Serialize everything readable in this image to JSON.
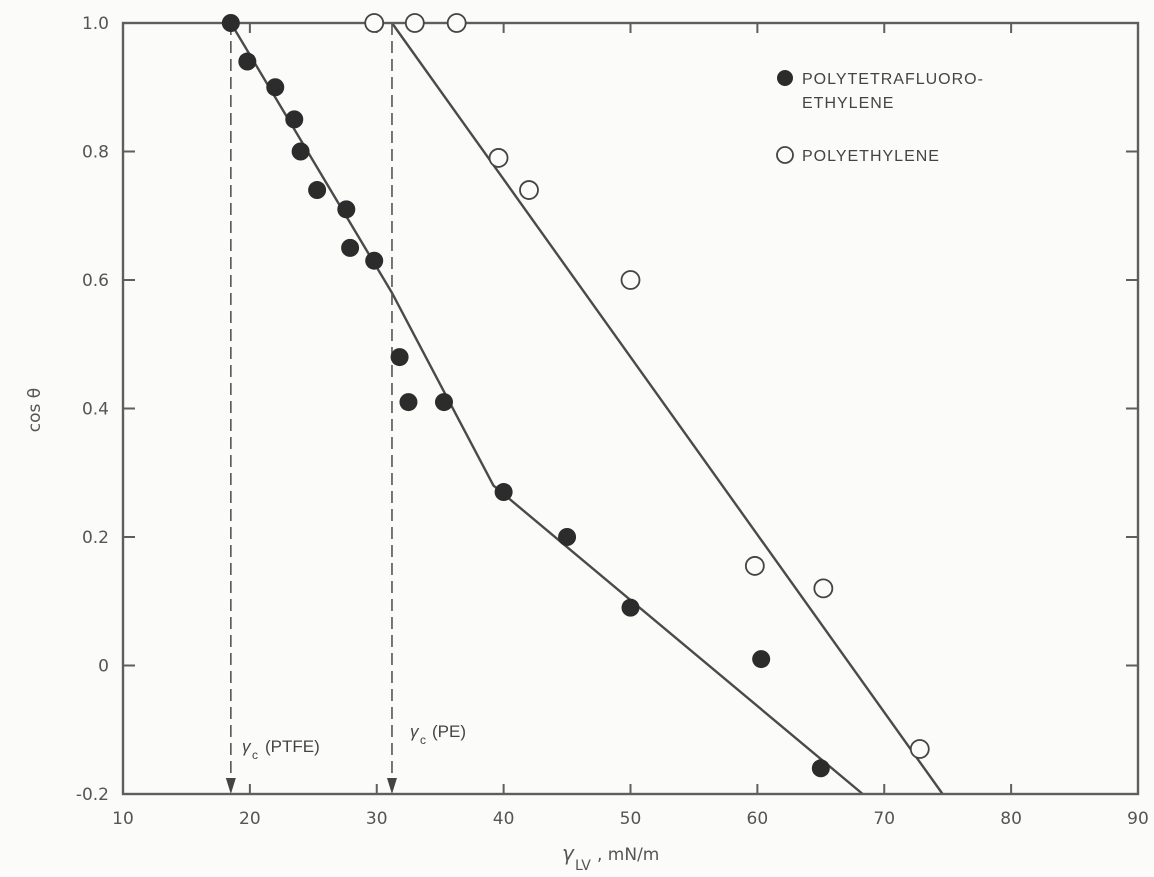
{
  "chart_data": {
    "type": "scatter",
    "title": "",
    "xlabel": "γ",
    "xlabel_sub": "LV",
    "xlabel_unit": ", mN/m",
    "ylabel": "cos θ",
    "xlim": [
      10,
      90
    ],
    "ylim": [
      -0.2,
      1.0
    ],
    "x_ticks": [
      "10",
      "20",
      "30",
      "40",
      "50",
      "60",
      "70",
      "80",
      "90"
    ],
    "y_ticks": [
      "-0.2",
      "0",
      "0.2",
      "0.4",
      "0.6",
      "0.8",
      "1.0"
    ],
    "y_tick_values": [
      -0.2,
      0,
      0.2,
      0.4,
      0.6,
      0.8,
      1.0
    ],
    "x_tick_values": [
      10,
      20,
      30,
      40,
      50,
      60,
      70,
      80,
      90
    ],
    "grid": false,
    "legend_position": "top-right",
    "series": [
      {
        "name": "POLYTETRAFLUORO-ETHYLENE",
        "legend_lines": [
          "POLYTETRAFLUORO-",
          "ETHYLENE"
        ],
        "marker": "filled-circle",
        "points": [
          [
            18.5,
            1.0
          ],
          [
            19.8,
            0.94
          ],
          [
            22.0,
            0.9
          ],
          [
            23.5,
            0.85
          ],
          [
            24.0,
            0.8
          ],
          [
            25.3,
            0.74
          ],
          [
            27.6,
            0.71
          ],
          [
            27.9,
            0.65
          ],
          [
            29.8,
            0.63
          ],
          [
            31.8,
            0.48
          ],
          [
            32.5,
            0.41
          ],
          [
            35.3,
            0.41
          ],
          [
            40.0,
            0.27
          ],
          [
            45.0,
            0.2
          ],
          [
            50.0,
            0.09
          ],
          [
            60.3,
            0.01
          ],
          [
            65.0,
            -0.16
          ]
        ],
        "fit_line": [
          [
            18.5,
            1.0
          ],
          [
            31.2,
            0.58
          ],
          [
            39.2,
            0.28
          ],
          [
            68.3,
            -0.2
          ]
        ]
      },
      {
        "name": "POLYETHYLENE",
        "legend_lines": [
          "POLYETHYLENE"
        ],
        "marker": "open-circle",
        "points": [
          [
            29.8,
            1.0
          ],
          [
            33.0,
            1.0
          ],
          [
            36.3,
            1.0
          ],
          [
            39.6,
            0.79
          ],
          [
            42.0,
            0.74
          ],
          [
            50.0,
            0.6
          ],
          [
            59.8,
            0.155
          ],
          [
            65.2,
            0.12
          ],
          [
            72.8,
            -0.13
          ]
        ],
        "fit_line": [
          [
            31.2,
            1.0
          ],
          [
            74.6,
            -0.2
          ]
        ]
      }
    ],
    "annotations": [
      {
        "symbol": "γ",
        "sub": "c",
        "text": "(PTFE)",
        "x": 18.5
      },
      {
        "symbol": "γ",
        "sub": "c",
        "text": "(PE)",
        "x": 31.2
      }
    ]
  }
}
